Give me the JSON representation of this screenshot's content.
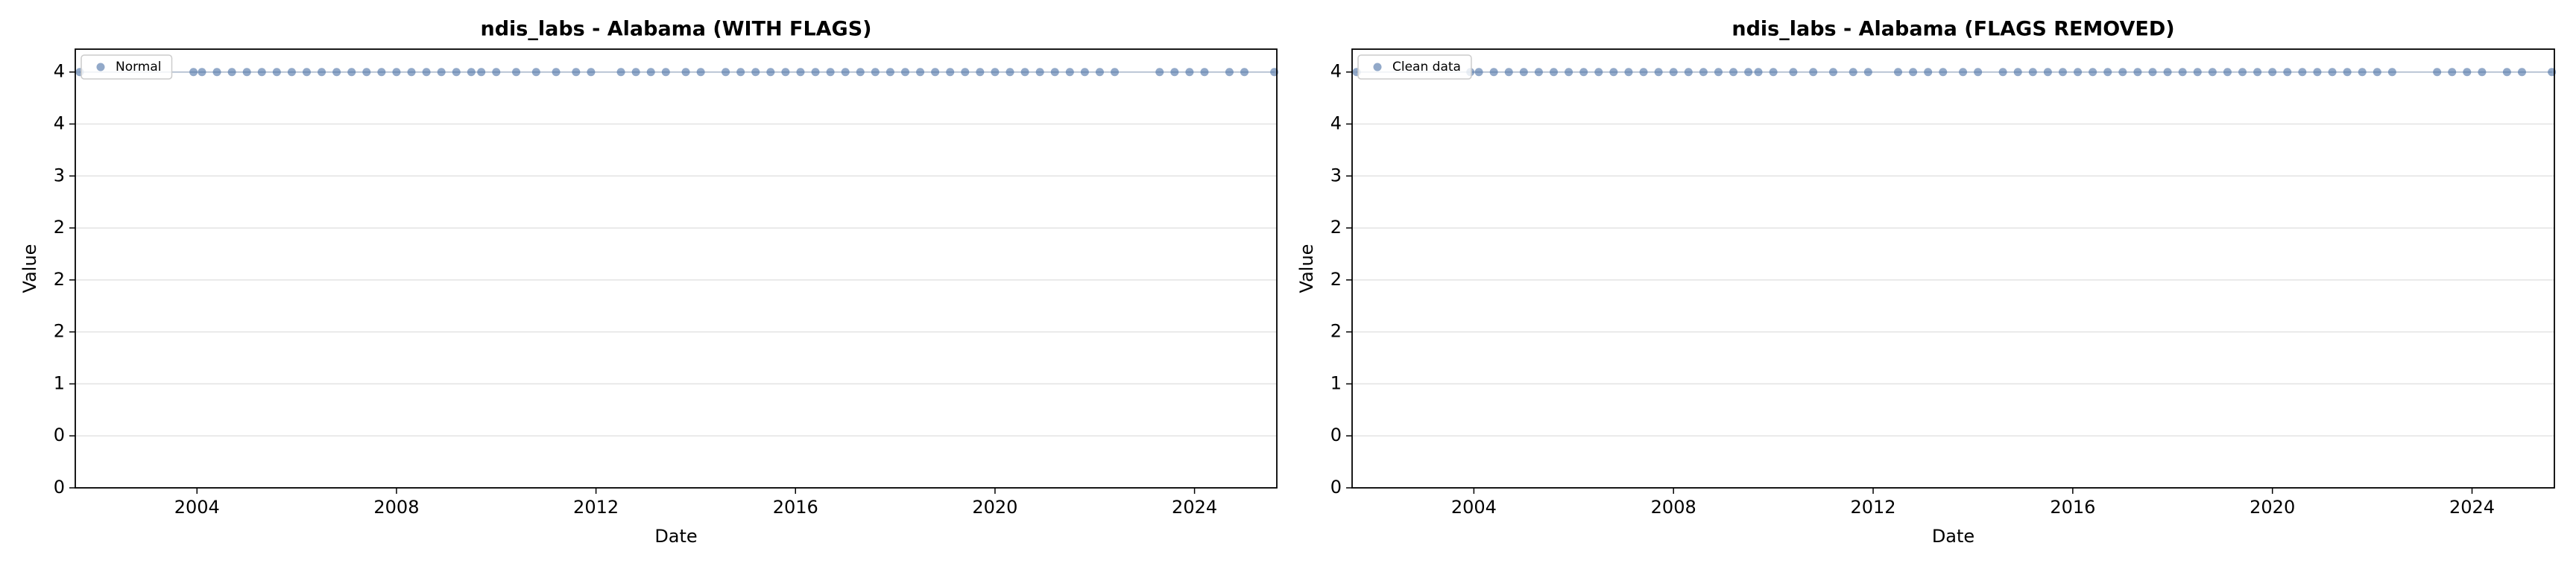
{
  "chart_data": [
    {
      "type": "scatter",
      "title": "ndis_labs - Alabama (WITH FLAGS)",
      "x_label": "Date",
      "y_label": "Value",
      "xlim": [
        2001.56,
        2025.65
      ],
      "xticks": [
        2004,
        2008,
        2012,
        2016,
        2020,
        2024
      ],
      "ylim": [
        0,
        4.22
      ],
      "yticks": [
        0,
        {
          "value": 0.5,
          "label": "0"
        },
        1,
        {
          "value": 1.5,
          "label": "2"
        },
        2,
        {
          "value": 2.5,
          "label": "2"
        },
        3,
        {
          "value": 3.5,
          "label": "4"
        },
        4
      ],
      "grid": true,
      "legend": "upper left",
      "series": [
        {
          "name": "Normal",
          "color": "#4a6fa5",
          "x": [
            2001.65,
            2003.93,
            2004.1,
            2004.4,
            2004.7,
            2005.0,
            2005.3,
            2005.6,
            2005.9,
            2006.2,
            2006.5,
            2006.8,
            2007.1,
            2007.4,
            2007.7,
            2008.0,
            2008.3,
            2008.6,
            2008.9,
            2009.2,
            2009.5,
            2009.7,
            2010.0,
            2010.4,
            2010.8,
            2011.2,
            2011.6,
            2011.9,
            2012.5,
            2012.8,
            2013.1,
            2013.4,
            2013.8,
            2014.1,
            2014.6,
            2014.9,
            2015.2,
            2015.5,
            2015.8,
            2016.1,
            2016.4,
            2016.7,
            2017.0,
            2017.3,
            2017.6,
            2017.9,
            2018.2,
            2018.5,
            2018.8,
            2019.1,
            2019.4,
            2019.7,
            2020.0,
            2020.3,
            2020.6,
            2020.9,
            2021.2,
            2021.5,
            2021.8,
            2022.1,
            2022.4,
            2023.3,
            2023.6,
            2023.9,
            2024.2,
            2024.7,
            2025.0,
            2025.6
          ],
          "values": [
            4,
            4,
            4,
            4,
            4,
            4,
            4,
            4,
            4,
            4,
            4,
            4,
            4,
            4,
            4,
            4,
            4,
            4,
            4,
            4,
            4,
            4,
            4,
            4,
            4,
            4,
            4,
            4,
            4,
            4,
            4,
            4,
            4,
            4,
            4,
            4,
            4,
            4,
            4,
            4,
            4,
            4,
            4,
            4,
            4,
            4,
            4,
            4,
            4,
            4,
            4,
            4,
            4,
            4,
            4,
            4,
            4,
            4,
            4,
            4,
            4,
            4,
            4,
            4,
            4,
            4,
            4,
            4
          ]
        }
      ]
    },
    {
      "type": "scatter",
      "title": "ndis_labs - Alabama (FLAGS REMOVED)",
      "x_label": "Date",
      "y_label": "Value",
      "xlim": [
        2001.56,
        2025.65
      ],
      "xticks": [
        2004,
        2008,
        2012,
        2016,
        2020,
        2024
      ],
      "ylim": [
        0,
        4.22
      ],
      "yticks": [
        0,
        {
          "value": 0.5,
          "label": "0"
        },
        1,
        {
          "value": 1.5,
          "label": "2"
        },
        2,
        {
          "value": 2.5,
          "label": "2"
        },
        3,
        {
          "value": 3.5,
          "label": "4"
        },
        4
      ],
      "grid": true,
      "legend": "upper left",
      "series": [
        {
          "name": "Clean data",
          "color": "#4a6fa5",
          "x": [
            2001.65,
            2003.93,
            2004.1,
            2004.4,
            2004.7,
            2005.0,
            2005.3,
            2005.6,
            2005.9,
            2006.2,
            2006.5,
            2006.8,
            2007.1,
            2007.4,
            2007.7,
            2008.0,
            2008.3,
            2008.6,
            2008.9,
            2009.2,
            2009.5,
            2009.7,
            2010.0,
            2010.4,
            2010.8,
            2011.2,
            2011.6,
            2011.9,
            2012.5,
            2012.8,
            2013.1,
            2013.4,
            2013.8,
            2014.1,
            2014.6,
            2014.9,
            2015.2,
            2015.5,
            2015.8,
            2016.1,
            2016.4,
            2016.7,
            2017.0,
            2017.3,
            2017.6,
            2017.9,
            2018.2,
            2018.5,
            2018.8,
            2019.1,
            2019.4,
            2019.7,
            2020.0,
            2020.3,
            2020.6,
            2020.9,
            2021.2,
            2021.5,
            2021.8,
            2022.1,
            2022.4,
            2023.3,
            2023.6,
            2023.9,
            2024.2,
            2024.7,
            2025.0,
            2025.6
          ],
          "values": [
            4,
            4,
            4,
            4,
            4,
            4,
            4,
            4,
            4,
            4,
            4,
            4,
            4,
            4,
            4,
            4,
            4,
            4,
            4,
            4,
            4,
            4,
            4,
            4,
            4,
            4,
            4,
            4,
            4,
            4,
            4,
            4,
            4,
            4,
            4,
            4,
            4,
            4,
            4,
            4,
            4,
            4,
            4,
            4,
            4,
            4,
            4,
            4,
            4,
            4,
            4,
            4,
            4,
            4,
            4,
            4,
            4,
            4,
            4,
            4,
            4,
            4,
            4,
            4,
            4,
            4,
            4,
            4
          ]
        }
      ]
    }
  ]
}
